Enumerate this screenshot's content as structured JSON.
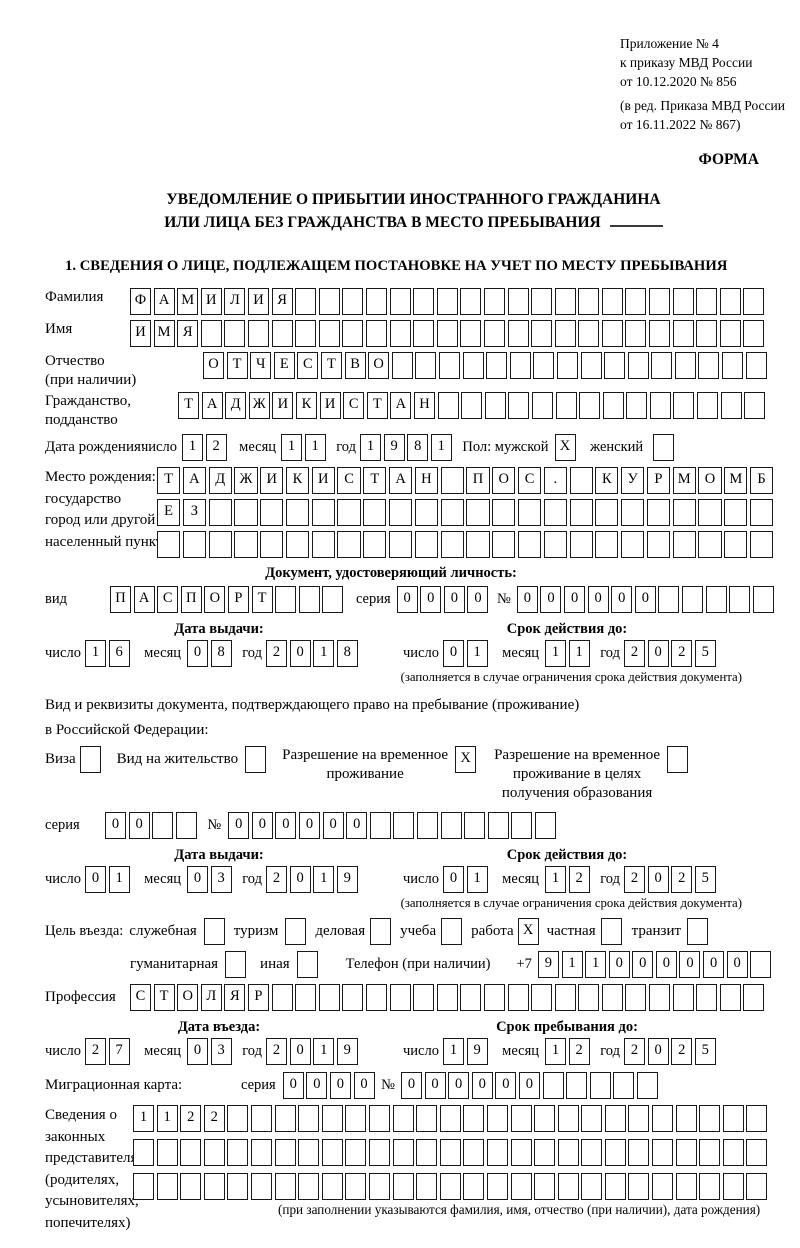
{
  "header_note": {
    "line1": "Приложение № 4",
    "line2": "к приказу МВД России",
    "line3": "от 10.12.2020 № 856",
    "line4": "(в ред. Приказа МВД России",
    "line5": "от 16.11.2022 № 867)",
    "form_label": "ФОРМА"
  },
  "title": {
    "line1": "УВЕДОМЛЕНИЕ О ПРИБЫТИИ ИНОСТРАННОГО ГРАЖДАНИНА",
    "line2": "ИЛИ ЛИЦА БЕЗ ГРАЖДАНСТВА В МЕСТО ПРЕБЫВАНИЯ"
  },
  "section1_heading": "1. СВЕДЕНИЯ О ЛИЦЕ, ПОДЛЕЖАЩЕМ ПОСТАНОВКЕ НА УЧЕТ ПО МЕСТУ ПРЕБЫВАНИЯ",
  "surname": {
    "label": "Фамилия",
    "value": "ФАМИЛИЯ",
    "count": 27
  },
  "firstname": {
    "label": "Имя",
    "value": "ИМЯ",
    "count": 27
  },
  "patronymic": {
    "label_line1": "Отчество",
    "label_line2": "(при наличии)",
    "value": "ОТЧЕСТВО",
    "count": 24
  },
  "citizenship": {
    "label_line1": "Гражданство,",
    "label_line2": "подданство",
    "value": "ТАДЖИКИСТАН",
    "count": 25
  },
  "birth_date": {
    "label": "Дата рождения:",
    "day_label": "число",
    "day": "12",
    "month_label": "месяц",
    "month": "11",
    "year_label": "год",
    "year": "1981",
    "sex_label": "Пол: мужской",
    "male_mark": "X",
    "female_label": "женский",
    "female_mark": ""
  },
  "birth_place": {
    "label_line1": "Место рождения:",
    "label_line2": "государство",
    "label_line3": "город или другой",
    "label_line4": "населенный пункт",
    "row1": {
      "value": "ТАДЖИКИСТАН ПОС. КУРМОМБ",
      "count": 24
    },
    "row2": {
      "value": "ЕЗ",
      "count": 24
    },
    "row3": {
      "value": "",
      "count": 24
    }
  },
  "identity_doc": {
    "heading": "Документ, удостоверяющий личность:",
    "kind_label": "вид",
    "kind": {
      "value": "ПАСПОРТ",
      "count": 10
    },
    "series_label": "серия",
    "series": {
      "value": "0000",
      "count": 4
    },
    "number_label": "№",
    "number": {
      "value": "000000",
      "count": 11
    },
    "issue_heading": "Дата выдачи:",
    "issue": {
      "day_label": "число",
      "day": "16",
      "month_label": "месяц",
      "month": "08",
      "year_label": "год",
      "year": "2018"
    },
    "expiry_heading": "Срок действия до:",
    "expiry": {
      "day_label": "число",
      "day": "01",
      "month_label": "месяц",
      "month": "11",
      "year_label": "год",
      "year": "2025"
    },
    "note": "(заполняется в случае ограничения срока действия документа)"
  },
  "residence_doc": {
    "intro_line1": "Вид и реквизиты документа, подтверждающего право на пребывание (проживание)",
    "intro_line2": "в Российской Федерации:",
    "visa_label": "Виза",
    "visa_mark": "",
    "permit_label": "Вид на жительство",
    "permit_mark": "",
    "rvp_line1": "Разрешение на временное",
    "rvp_line2": "проживание",
    "rvp_mark": "X",
    "rvp_edu_line1": "Разрешение на временное",
    "rvp_edu_line2": "проживание в целях",
    "rvp_edu_line3": "получения образования",
    "rvp_edu_mark": "",
    "series_label": "серия",
    "series": {
      "value": "00",
      "count": 4
    },
    "number_label": "№",
    "number": {
      "value": "000000",
      "count": 14
    },
    "issue_heading": "Дата выдачи:",
    "issue": {
      "day_label": "число",
      "day": "01",
      "month_label": "месяц",
      "month": "03",
      "year_label": "год",
      "year": "2019"
    },
    "expiry_heading": "Срок действия до:",
    "expiry": {
      "day_label": "число",
      "day": "01",
      "month_label": "месяц",
      "month": "12",
      "year_label": "год",
      "year": "2025"
    },
    "note": "(заполняется в случае ограничения срока действия документа)"
  },
  "visit_purpose": {
    "label": "Цель въезда:",
    "opt_official": "служебная",
    "official_mark": "",
    "opt_tourism": "туризм",
    "tourism_mark": "",
    "opt_business": "деловая",
    "business_mark": "",
    "opt_study": "учеба",
    "study_mark": "",
    "opt_work": "работа",
    "work_mark": "X",
    "opt_private": "частная",
    "private_mark": "",
    "opt_transit": "транзит",
    "transit_mark": "",
    "opt_humanitarian": "гуманитарная",
    "humanitarian_mark": "",
    "opt_other": "иная",
    "other_mark": ""
  },
  "phone": {
    "label": "Телефон (при наличии)",
    "prefix": "+7",
    "cells": {
      "value": "911000000",
      "count": 10
    }
  },
  "profession": {
    "label": "Профессия",
    "value": "СТОЛЯР",
    "count": 27
  },
  "entry": {
    "issue_heading": "Дата въезда:",
    "issue": {
      "day_label": "число",
      "day": "27",
      "month_label": "месяц",
      "month": "03",
      "year_label": "год",
      "year": "2019"
    },
    "expiry_heading": "Срок пребывания до:",
    "expiry": {
      "day_label": "число",
      "day": "19",
      "month_label": "месяц",
      "month": "12",
      "year_label": "год",
      "year": "2025"
    }
  },
  "migration_card": {
    "label": "Миграционная карта:",
    "series_label": "серия",
    "series": {
      "value": "0000",
      "count": 4
    },
    "number_label": "№",
    "number": {
      "value": "000000",
      "count": 11
    }
  },
  "representatives": {
    "label_line1": "Сведения о",
    "label_line2": "законных",
    "label_line3": "представителях",
    "label_line4": "(родителях,",
    "label_line5": "усыновителях,",
    "label_line6": "попечителях)",
    "row1": {
      "value": "1122",
      "count": 27
    },
    "row2": {
      "value": "",
      "count": 27
    },
    "row3": {
      "value": "",
      "count": 27
    },
    "note": "(при заполнении указываются фамилия, имя, отчество (при наличии), дата рождения)"
  }
}
